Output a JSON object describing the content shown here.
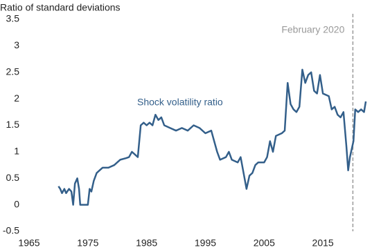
{
  "chart_data": {
    "type": "line",
    "y_axis_title": "Ratio of standard deviations",
    "x": [
      1970.0,
      1970.3,
      1970.6,
      1971.0,
      1971.3,
      1971.8,
      1972.2,
      1972.5,
      1972.8,
      1973.2,
      1973.5,
      1973.7,
      1974.5,
      1975.0,
      1975.3,
      1975.6,
      1976.0,
      1976.5,
      1977.0,
      1977.5,
      1978.5,
      1979.5,
      1980.0,
      1980.5,
      1981.5,
      1982.0,
      1982.5,
      1983.0,
      1983.5,
      1984.0,
      1984.5,
      1985.0,
      1985.5,
      1986.0,
      1986.5,
      1987.0,
      1987.5,
      1988.0,
      1989.0,
      1990.0,
      1991.0,
      1992.0,
      1993.0,
      1994.0,
      1995.0,
      1996.0,
      1996.5,
      1997.0,
      1997.5,
      1998.5,
      1999.0,
      1999.5,
      2000.5,
      2001.0,
      2001.5,
      2002.0,
      2002.5,
      2003.0,
      2003.5,
      2004.0,
      2005.0,
      2005.5,
      2006.0,
      2006.5,
      2007.0,
      2008.0,
      2008.5,
      2009.0,
      2009.5,
      2010.0,
      2010.5,
      2011.0,
      2011.5,
      2012.0,
      2012.5,
      2013.0,
      2013.5,
      2014.0,
      2014.5,
      2015.0,
      2016.0,
      2016.5,
      2017.0,
      2017.5,
      2018.0,
      2018.5,
      2019.0,
      2019.3,
      2019.6,
      2020.0,
      2020.2,
      2020.5,
      2021.0,
      2021.5,
      2022.0,
      2022.3
    ],
    "series": [
      {
        "name": "Shock volatility ratio",
        "color": "#335f8a",
        "values": [
          0.35,
          0.3,
          0.22,
          0.3,
          0.22,
          0.3,
          0.25,
          0.0,
          0.4,
          0.5,
          0.3,
          0.0,
          0.0,
          0.0,
          0.3,
          0.25,
          0.45,
          0.6,
          0.65,
          0.7,
          0.7,
          0.75,
          0.8,
          0.85,
          0.88,
          0.9,
          1.0,
          0.95,
          0.9,
          1.5,
          1.55,
          1.5,
          1.55,
          1.5,
          1.7,
          1.6,
          1.65,
          1.5,
          1.45,
          1.4,
          1.45,
          1.4,
          1.5,
          1.45,
          1.35,
          1.4,
          1.2,
          1.0,
          0.85,
          0.9,
          1.0,
          0.85,
          0.8,
          0.9,
          0.6,
          0.3,
          0.55,
          0.6,
          0.75,
          0.8,
          0.8,
          0.9,
          1.2,
          1.0,
          1.3,
          1.35,
          1.4,
          2.3,
          1.9,
          1.8,
          1.75,
          1.85,
          2.55,
          2.3,
          2.45,
          2.5,
          2.15,
          2.1,
          2.45,
          2.1,
          2.05,
          1.8,
          1.85,
          1.7,
          1.65,
          1.75,
          1.1,
          0.65,
          0.9,
          1.1,
          1.2,
          1.8,
          1.75,
          1.8,
          1.75,
          1.95
        ]
      }
    ],
    "vline": {
      "x": 2020.1,
      "label": "February 2020",
      "color": "#999999"
    },
    "xlim": [
      1965,
      2023
    ],
    "xticks": [
      1965,
      1975,
      1985,
      1995,
      2005,
      2015
    ],
    "ylim": [
      -0.5,
      3.5
    ],
    "yticks": [
      -0.5,
      0,
      0.5,
      1,
      1.5,
      2,
      2.5,
      3,
      3.5
    ],
    "grid": false
  }
}
